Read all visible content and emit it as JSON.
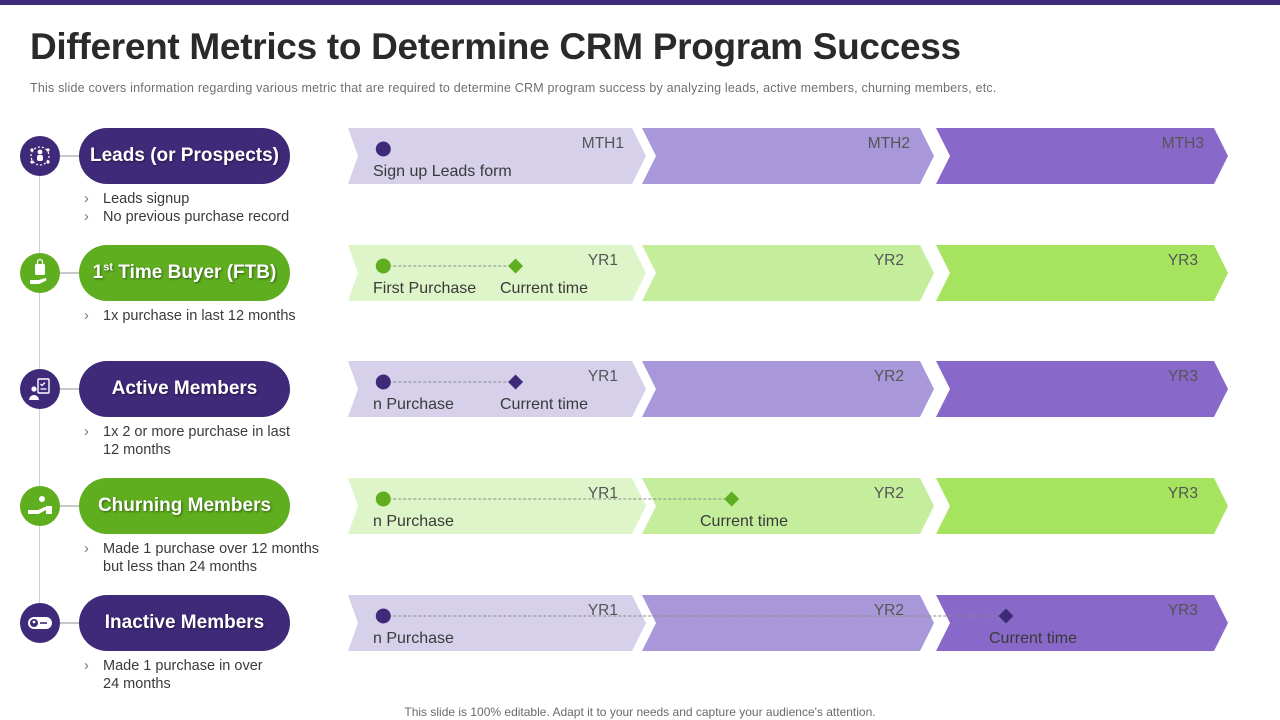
{
  "header": {
    "title": "Different Metrics to Determine CRM Program Success",
    "subtitle": "This slide covers information regarding various metric that are required to determine CRM program  success by analyzing leads, active members, churning members, etc."
  },
  "footer": {
    "text": "This slide is 100% editable. Adapt it to your needs and capture your audience's attention."
  },
  "colors": {
    "purple_dark": "#3f2a7a",
    "green_dark": "#5fae1f",
    "purple_segments": [
      "#d6d0ea",
      "#a898d9",
      "#8868c8"
    ],
    "green_segments": [
      "#ddf5c8",
      "#c4ee9c",
      "#a6e35e"
    ],
    "purple_marker": "#3f2a7a",
    "green_marker": "#5fae1f"
  },
  "rows": [
    {
      "name": "Leads (or Prospects)",
      "theme": "purple",
      "icon": "group-network-icon",
      "bullets": [
        "Leads signup",
        "No previous purchase record"
      ],
      "segments": [
        "MTH1",
        "MTH2",
        "MTH3"
      ],
      "events": [
        {
          "label": "Sign up Leads form",
          "marker": "circle",
          "position": 0.04
        }
      ]
    },
    {
      "name_main": "1",
      "name_sup": "st",
      "name_rest": " Time Buyer (FTB)",
      "theme": "green",
      "icon": "shopping-bag-hand-icon",
      "bullets": [
        "1x purchase in last 12 months"
      ],
      "segments": [
        "YR1",
        "YR2",
        "YR3"
      ],
      "events": [
        {
          "label": "First Purchase",
          "marker": "circle",
          "position": 0.04
        },
        {
          "label": "Current time",
          "marker": "diamond",
          "position": 0.19
        }
      ]
    },
    {
      "name": "Active Members",
      "theme": "purple",
      "icon": "member-checklist-icon",
      "bullets": [
        "1x 2 or more purchase in last 12 months"
      ],
      "segments": [
        "YR1",
        "YR2",
        "YR3"
      ],
      "events": [
        {
          "label": "n Purchase",
          "marker": "circle",
          "position": 0.04
        },
        {
          "label": "Current time",
          "marker": "diamond",
          "position": 0.19
        }
      ]
    },
    {
      "name": "Churning Members",
      "theme": "green",
      "icon": "hand-giving-icon",
      "bullets": [
        "Made  1 purchase over 12 months but less than 24 months"
      ],
      "segments": [
        "YR1",
        "YR2",
        "YR3"
      ],
      "events": [
        {
          "label": "n Purchase",
          "marker": "circle",
          "position": 0.04
        },
        {
          "label": "Current time",
          "marker": "diamond",
          "position": 0.435
        }
      ]
    },
    {
      "name": "Inactive Members",
      "theme": "purple",
      "icon": "toggle-user-icon",
      "bullets": [
        "Made  1 purchase in over 24 months"
      ],
      "segments": [
        "YR1",
        "YR2",
        "YR3"
      ],
      "events": [
        {
          "label": "n Purchase",
          "marker": "circle",
          "position": 0.04
        },
        {
          "label": "Current time",
          "marker": "diamond",
          "position": 0.746
        }
      ]
    }
  ]
}
